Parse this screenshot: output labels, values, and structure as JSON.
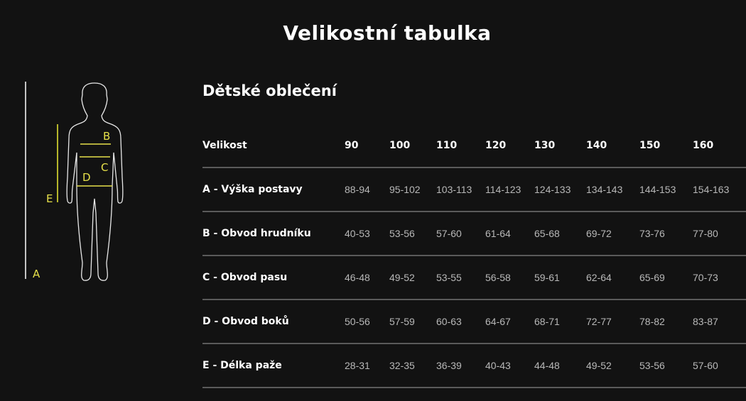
{
  "title": "Velikostní tabulka",
  "subtitle": "Dětské oblečení",
  "figure": {
    "labels": {
      "a": "A",
      "b": "B",
      "c": "C",
      "d": "D",
      "e": "E"
    },
    "accent": "#e6e04a",
    "line_e": "#b5b52a"
  },
  "table": {
    "header_label": "Velikost",
    "sizes": [
      "90",
      "100",
      "110",
      "120",
      "130",
      "140",
      "150",
      "160"
    ],
    "rows": [
      {
        "label": "A - Výška postavy",
        "values": [
          "88-94",
          "95-102",
          "103-113",
          "114-123",
          "124-133",
          "134-143",
          "144-153",
          "154-163"
        ]
      },
      {
        "label": "B - Obvod hrudníku",
        "values": [
          "40-53",
          "53-56",
          "57-60",
          "61-64",
          "65-68",
          "69-72",
          "73-76",
          "77-80"
        ]
      },
      {
        "label": "C - Obvod pasu",
        "values": [
          "46-48",
          "49-52",
          "53-55",
          "56-58",
          "59-61",
          "62-64",
          "65-69",
          "70-73"
        ]
      },
      {
        "label": "D - Obvod boků",
        "values": [
          "50-56",
          "57-59",
          "60-63",
          "64-67",
          "68-71",
          "72-77",
          "78-82",
          "83-87"
        ]
      },
      {
        "label": "E - Délka paže",
        "values": [
          "28-31",
          "32-35",
          "36-39",
          "40-43",
          "44-48",
          "49-52",
          "53-56",
          "57-60"
        ]
      }
    ]
  }
}
